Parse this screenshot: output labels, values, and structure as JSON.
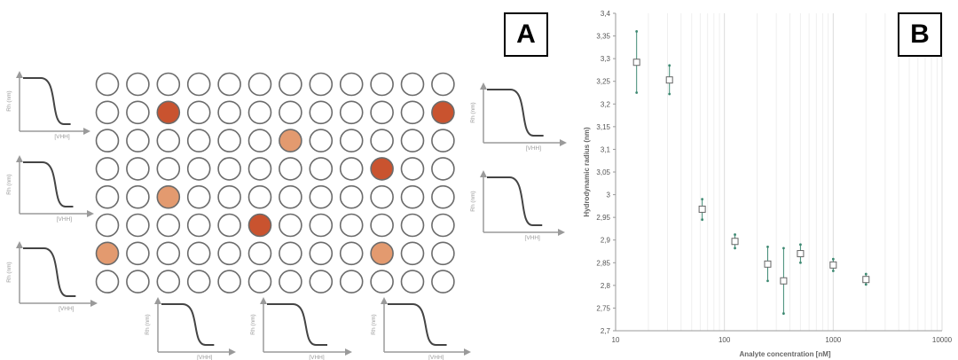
{
  "panels": {
    "a_label": "A",
    "b_label": "B"
  },
  "plate": {
    "rows": 8,
    "cols": 12,
    "colors": {
      "empty": "#ffffff",
      "dark": "#c9532f",
      "light": "#e39a6f",
      "outline": "#6b6b6b"
    },
    "filled": [
      {
        "row": 2,
        "col": 3,
        "tone": "dark"
      },
      {
        "row": 2,
        "col": 12,
        "tone": "dark"
      },
      {
        "row": 3,
        "col": 7,
        "tone": "light"
      },
      {
        "row": 4,
        "col": 10,
        "tone": "dark"
      },
      {
        "row": 5,
        "col": 3,
        "tone": "light"
      },
      {
        "row": 6,
        "col": 6,
        "tone": "dark"
      },
      {
        "row": 7,
        "col": 1,
        "tone": "light"
      },
      {
        "row": 7,
        "col": 10,
        "tone": "light"
      }
    ]
  },
  "mini_curves": {
    "ylabel": "Rh (nm)",
    "xlabel": "[VHH]",
    "xlabel_cut": "[VHH]"
  },
  "chart_data": {
    "type": "scatter",
    "title": "",
    "xlabel": "Analyte concentration [nM]",
    "ylabel": "Hydrodynamic radius (nm)",
    "xscale": "log",
    "xlim": [
      10,
      10000
    ],
    "ylim": [
      2.7,
      3.4
    ],
    "x_ticks": [
      "10",
      "100",
      "1000",
      "10000"
    ],
    "y_ticks": [
      "2,7",
      "2,75",
      "2,8",
      "2,85",
      "2,9",
      "2,95",
      "3",
      "3,05",
      "3,1",
      "3,15",
      "3,2",
      "3,25",
      "3,3",
      "3,35",
      "3,4"
    ],
    "grid": "vertical",
    "legend": "none",
    "marker_color": "#3f8a73",
    "points": [
      {
        "x": 15.6,
        "y": 3.292,
        "ylow": 3.225,
        "yhigh": 3.36
      },
      {
        "x": 31.25,
        "y": 3.253,
        "ylow": 3.222,
        "yhigh": 3.285
      },
      {
        "x": 62.5,
        "y": 2.968,
        "ylow": 2.945,
        "yhigh": 2.99
      },
      {
        "x": 125,
        "y": 2.897,
        "ylow": 2.882,
        "yhigh": 2.912
      },
      {
        "x": 250,
        "y": 2.847,
        "ylow": 2.81,
        "yhigh": 2.885
      },
      {
        "x": 350,
        "y": 2.81,
        "ylow": 2.738,
        "yhigh": 2.882
      },
      {
        "x": 500,
        "y": 2.87,
        "ylow": 2.85,
        "yhigh": 2.89
      },
      {
        "x": 1000,
        "y": 2.845,
        "ylow": 2.832,
        "yhigh": 2.858
      },
      {
        "x": 2000,
        "y": 2.813,
        "ylow": 2.802,
        "yhigh": 2.825
      }
    ]
  }
}
